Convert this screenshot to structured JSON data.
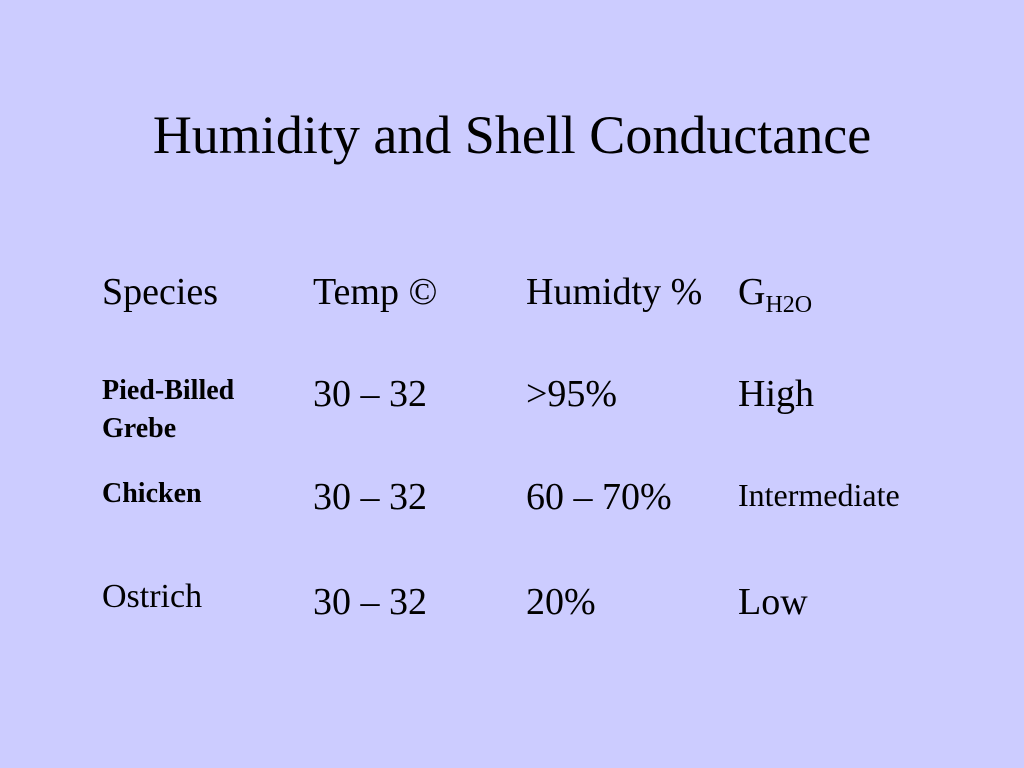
{
  "title": "Humidity and Shell Conductance",
  "table": {
    "header": [
      "Species",
      "Temp ©",
      "Humidty %",
      {
        "text": "G",
        "sub": "H2O"
      }
    ],
    "rows": [
      [
        "Pied-Billed Grebe",
        "30 – 32",
        ">95%",
        "High"
      ],
      [
        "Chicken",
        "30 – 32",
        "60 – 70%",
        "Intermediate"
      ],
      [
        "Ostrich",
        "30 – 32",
        "20%",
        "Low"
      ]
    ]
  }
}
